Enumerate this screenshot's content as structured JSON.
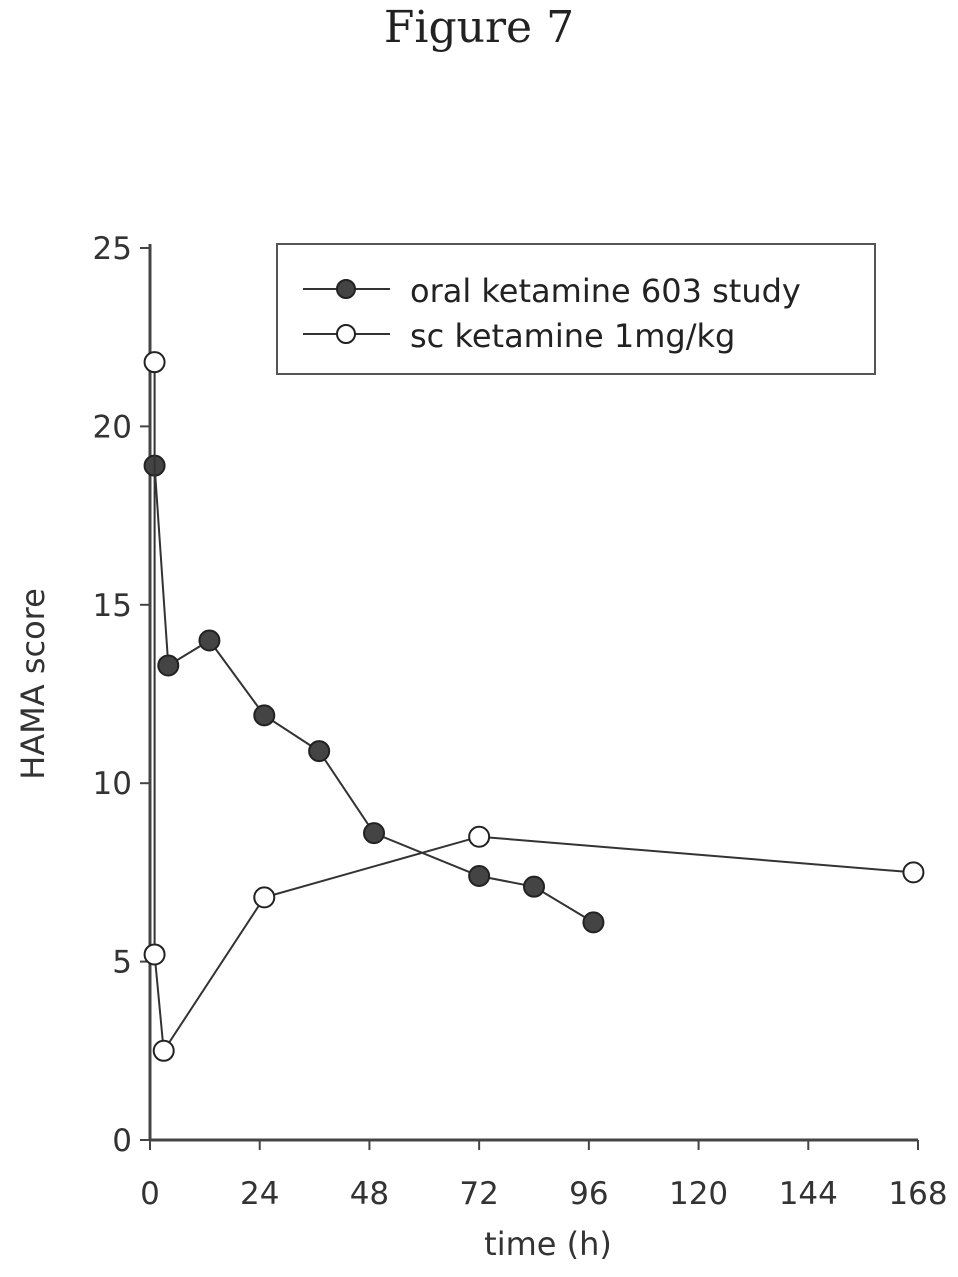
{
  "figure": {
    "title": "Figure 7"
  },
  "chart_data": {
    "type": "line",
    "title": "Figure 7",
    "xlabel": "time (h)",
    "ylabel": "HAMA score",
    "xlim": [
      0,
      168
    ],
    "ylim": [
      0,
      25
    ],
    "x_ticks": [
      0,
      24,
      48,
      72,
      96,
      120,
      144,
      168
    ],
    "y_ticks": [
      0,
      5,
      10,
      15,
      20,
      25
    ],
    "x_tick_labels": [
      "0",
      "24",
      "48",
      "72",
      "96",
      "120",
      "144",
      "168"
    ],
    "y_tick_labels": [
      "0",
      "5",
      "10",
      "15",
      "20",
      "25"
    ],
    "grid": false,
    "legend": "top-right",
    "series": [
      {
        "name": "oral ketamine 603 study",
        "marker": "filled",
        "color": "#333333",
        "x": [
          1,
          4,
          13,
          25,
          37,
          49,
          72,
          84,
          97
        ],
        "y": [
          18.9,
          13.3,
          14.0,
          11.9,
          10.9,
          8.6,
          7.4,
          7.1,
          6.1
        ]
      },
      {
        "name": "sc ketamine 1mg/kg",
        "marker": "open",
        "color": "#333333",
        "x": [
          1,
          1,
          3,
          25,
          72,
          167
        ],
        "y": [
          21.8,
          5.2,
          2.5,
          6.8,
          8.5,
          7.5
        ]
      }
    ]
  }
}
